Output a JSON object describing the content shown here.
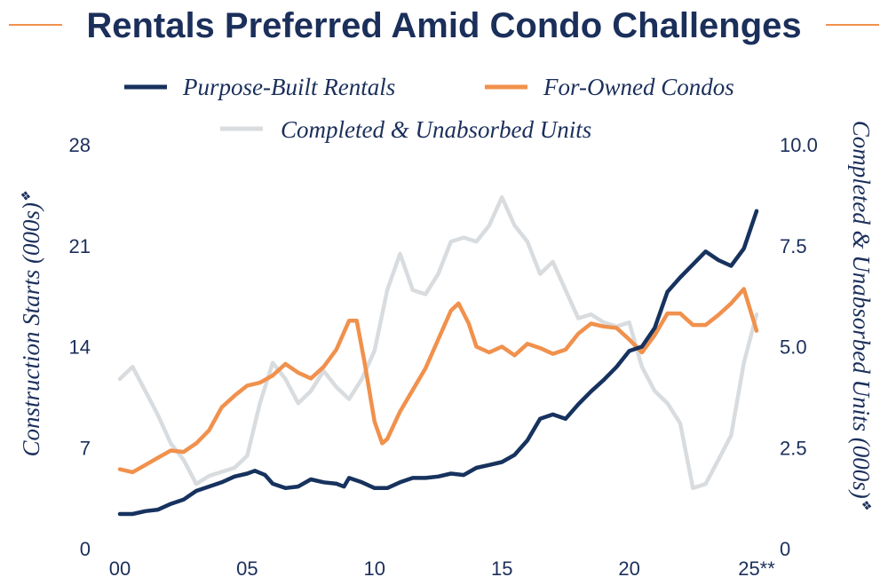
{
  "chart_data": {
    "type": "line",
    "title": "Rentals Preferred Amid Condo Challenges",
    "legend_position": "top-center",
    "grid": false,
    "colors": {
      "title": "#1b2f5b",
      "title_rule": "#f0914d"
    },
    "x_axis": {
      "ticks": [
        0,
        5,
        10,
        15,
        20,
        25
      ],
      "tick_labels": [
        "00",
        "05",
        "10",
        "15",
        "20",
        "25**"
      ],
      "range": [
        0,
        25
      ]
    },
    "y_left": {
      "label": "Construction Starts (000s)",
      "label_marker": "❖",
      "ticks": [
        0,
        7,
        14,
        21,
        28
      ],
      "tick_labels": [
        "0",
        "7",
        "14",
        "21",
        "28"
      ],
      "range": [
        0,
        28
      ]
    },
    "y_right": {
      "label": "Completed & Unabsorbed Units (000s)",
      "label_marker": "❖",
      "ticks": [
        0,
        2.5,
        5.0,
        7.5,
        10.0
      ],
      "tick_labels": [
        "0",
        "2.5",
        "5.0",
        "7.5",
        "10.0"
      ],
      "range": [
        0,
        10
      ]
    },
    "series": [
      {
        "name": "Purpose-Built Rentals",
        "axis": "left",
        "color": "#17325e",
        "points": [
          [
            0,
            2.4
          ],
          [
            0.5,
            2.4
          ],
          [
            1,
            2.6
          ],
          [
            1.5,
            2.7
          ],
          [
            2,
            3.1
          ],
          [
            2.5,
            3.4
          ],
          [
            3,
            4.0
          ],
          [
            3.5,
            4.3
          ],
          [
            4,
            4.6
          ],
          [
            4.5,
            5.0
          ],
          [
            5,
            5.2
          ],
          [
            5.3,
            5.4
          ],
          [
            5.7,
            5.1
          ],
          [
            6,
            4.5
          ],
          [
            6.5,
            4.2
          ],
          [
            7,
            4.3
          ],
          [
            7.5,
            4.8
          ],
          [
            8,
            4.6
          ],
          [
            8.5,
            4.5
          ],
          [
            8.8,
            4.3
          ],
          [
            9,
            4.9
          ],
          [
            9.5,
            4.6
          ],
          [
            10,
            4.2
          ],
          [
            10.5,
            4.2
          ],
          [
            11,
            4.6
          ],
          [
            11.5,
            4.9
          ],
          [
            12,
            4.9
          ],
          [
            12.5,
            5.0
          ],
          [
            13,
            5.2
          ],
          [
            13.5,
            5.1
          ],
          [
            14,
            5.6
          ],
          [
            14.5,
            5.8
          ],
          [
            15,
            6.0
          ],
          [
            15.5,
            6.5
          ],
          [
            16,
            7.5
          ],
          [
            16.5,
            9.0
          ],
          [
            17,
            9.3
          ],
          [
            17.5,
            9.0
          ],
          [
            18,
            10.0
          ],
          [
            18.5,
            10.9
          ],
          [
            19,
            11.7
          ],
          [
            19.5,
            12.6
          ],
          [
            20,
            13.7
          ],
          [
            20.5,
            14.0
          ],
          [
            21,
            15.3
          ],
          [
            21.5,
            17.8
          ],
          [
            22,
            18.8
          ],
          [
            22.5,
            19.7
          ],
          [
            23,
            20.6
          ],
          [
            23.5,
            20.0
          ],
          [
            24,
            19.6
          ],
          [
            24.5,
            20.8
          ],
          [
            25,
            23.4
          ]
        ]
      },
      {
        "name": "For-Owned Condos",
        "axis": "left",
        "color": "#f0914d",
        "points": [
          [
            0,
            5.5
          ],
          [
            0.5,
            5.3
          ],
          [
            1,
            5.8
          ],
          [
            1.5,
            6.3
          ],
          [
            2,
            6.8
          ],
          [
            2.5,
            6.7
          ],
          [
            3,
            7.3
          ],
          [
            3.5,
            8.2
          ],
          [
            4,
            9.8
          ],
          [
            4.5,
            10.6
          ],
          [
            5,
            11.3
          ],
          [
            5.5,
            11.5
          ],
          [
            6,
            12.0
          ],
          [
            6.5,
            12.8
          ],
          [
            7,
            12.2
          ],
          [
            7.5,
            11.8
          ],
          [
            8,
            12.6
          ],
          [
            8.5,
            13.8
          ],
          [
            9,
            15.8
          ],
          [
            9.3,
            15.8
          ],
          [
            9.6,
            13.0
          ],
          [
            10,
            8.8
          ],
          [
            10.3,
            7.3
          ],
          [
            10.5,
            7.6
          ],
          [
            11,
            9.5
          ],
          [
            11.5,
            11.0
          ],
          [
            12,
            12.5
          ],
          [
            12.5,
            14.5
          ],
          [
            13,
            16.5
          ],
          [
            13.3,
            17.0
          ],
          [
            13.7,
            15.6
          ],
          [
            14,
            14.0
          ],
          [
            14.5,
            13.6
          ],
          [
            15,
            14.0
          ],
          [
            15.5,
            13.4
          ],
          [
            16,
            14.2
          ],
          [
            16.5,
            13.9
          ],
          [
            17,
            13.5
          ],
          [
            17.5,
            13.8
          ],
          [
            18,
            14.9
          ],
          [
            18.5,
            15.6
          ],
          [
            19,
            15.4
          ],
          [
            19.5,
            15.3
          ],
          [
            20,
            14.5
          ],
          [
            20.5,
            13.6
          ],
          [
            21,
            14.8
          ],
          [
            21.5,
            16.3
          ],
          [
            22,
            16.3
          ],
          [
            22.5,
            15.5
          ],
          [
            23,
            15.5
          ],
          [
            23.5,
            16.2
          ],
          [
            24,
            17.0
          ],
          [
            24.5,
            18.0
          ],
          [
            25,
            15.1
          ]
        ]
      },
      {
        "name": "Completed & Unabsorbed Units",
        "axis": "right",
        "color": "#d9dcdf",
        "points": [
          [
            0,
            4.2
          ],
          [
            0.5,
            4.5
          ],
          [
            1,
            3.9
          ],
          [
            1.5,
            3.3
          ],
          [
            2,
            2.6
          ],
          [
            2.5,
            2.2
          ],
          [
            3,
            1.6
          ],
          [
            3.5,
            1.8
          ],
          [
            4,
            1.9
          ],
          [
            4.5,
            2.0
          ],
          [
            5,
            2.3
          ],
          [
            5.5,
            3.6
          ],
          [
            6,
            4.6
          ],
          [
            6.5,
            4.2
          ],
          [
            7,
            3.6
          ],
          [
            7.5,
            3.9
          ],
          [
            8,
            4.4
          ],
          [
            8.5,
            4.0
          ],
          [
            9,
            3.7
          ],
          [
            9.5,
            4.2
          ],
          [
            10,
            4.9
          ],
          [
            10.5,
            6.4
          ],
          [
            11,
            7.3
          ],
          [
            11.5,
            6.4
          ],
          [
            12,
            6.3
          ],
          [
            12.5,
            6.8
          ],
          [
            13,
            7.6
          ],
          [
            13.5,
            7.7
          ],
          [
            14,
            7.6
          ],
          [
            14.5,
            8.0
          ],
          [
            15,
            8.7
          ],
          [
            15.5,
            8.0
          ],
          [
            16,
            7.6
          ],
          [
            16.5,
            6.8
          ],
          [
            17,
            7.1
          ],
          [
            17.5,
            6.4
          ],
          [
            18,
            5.7
          ],
          [
            18.5,
            5.8
          ],
          [
            19,
            5.6
          ],
          [
            19.5,
            5.5
          ],
          [
            20,
            5.6
          ],
          [
            20.5,
            4.5
          ],
          [
            21,
            3.9
          ],
          [
            21.5,
            3.6
          ],
          [
            22,
            3.1
          ],
          [
            22.5,
            1.5
          ],
          [
            23,
            1.6
          ],
          [
            23.5,
            2.2
          ],
          [
            24,
            2.8
          ],
          [
            24.5,
            4.6
          ],
          [
            25,
            5.8
          ]
        ]
      }
    ]
  }
}
